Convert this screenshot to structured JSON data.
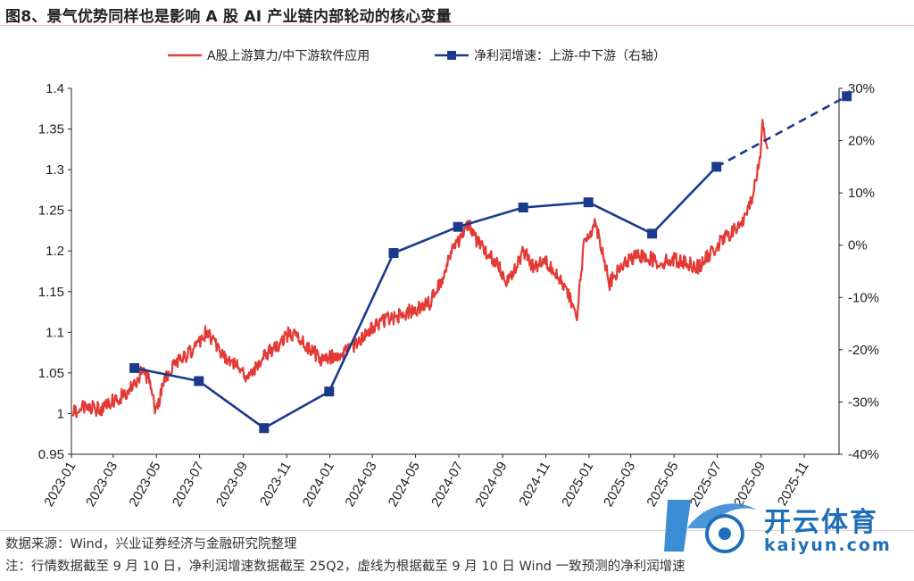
{
  "title": "图8、景气优势同样也是影响 A 股 AI 产业链内部轮动的核心变量",
  "source": "数据来源：Wind，兴业证券经济与金融研究院整理",
  "note": "注：行情数据截至 9 月 10 日，净利润增速数据截至 25Q2，虚线为根据截至 9 月 10 日 Wind 一致预测的净利润增速",
  "watermark": {
    "brand": "开云体育",
    "domain": "kaiyun.com"
  },
  "colors": {
    "red": "#e33a35",
    "blue": "#1a3a8c"
  },
  "chart_data": {
    "type": "line",
    "legend_position": "top",
    "x_ticks": [
      "2023-01",
      "2023-03",
      "2023-05",
      "2023-07",
      "2023-09",
      "2023-11",
      "2024-01",
      "2024-03",
      "2024-05",
      "2024-07",
      "2024-09",
      "2024-11",
      "2025-01",
      "2025-03",
      "2025-05",
      "2025-07",
      "2025-09",
      "2025-11"
    ],
    "xlim": [
      "2023-01",
      "2025-12-20"
    ],
    "y_left": {
      "ticks": [
        "0.95",
        "1",
        "1.05",
        "1.1",
        "1.15",
        "1.2",
        "1.25",
        "1.3",
        "1.35",
        "1.4"
      ],
      "lim": [
        0.95,
        1.4
      ]
    },
    "y_right": {
      "ticks": [
        "30%",
        "20%",
        "10%",
        "0%",
        "-10%",
        "-20%",
        "-30%",
        "-40%"
      ],
      "lim": [
        -40,
        30
      ],
      "unit": "%"
    },
    "series": [
      {
        "name": "A股上游算力/中下游软件应用",
        "axis": "left",
        "color": "#e33a35",
        "style": "line",
        "points": [
          [
            "2023-01-03",
            1.0
          ],
          [
            "2023-01-20",
            1.01
          ],
          [
            "2023-02-10",
            1.005
          ],
          [
            "2023-02-28",
            1.015
          ],
          [
            "2023-03-10",
            1.02
          ],
          [
            "2023-03-25",
            1.03
          ],
          [
            "2023-04-10",
            1.05
          ],
          [
            "2023-04-20",
            1.045
          ],
          [
            "2023-05-01",
            1.0
          ],
          [
            "2023-05-10",
            1.04
          ],
          [
            "2023-05-25",
            1.06
          ],
          [
            "2023-06-10",
            1.07
          ],
          [
            "2023-06-25",
            1.08
          ],
          [
            "2023-07-10",
            1.1
          ],
          [
            "2023-07-20",
            1.09
          ],
          [
            "2023-08-05",
            1.07
          ],
          [
            "2023-08-20",
            1.06
          ],
          [
            "2023-09-05",
            1.045
          ],
          [
            "2023-09-20",
            1.06
          ],
          [
            "2023-10-05",
            1.075
          ],
          [
            "2023-10-20",
            1.085
          ],
          [
            "2023-11-05",
            1.1
          ],
          [
            "2023-11-20",
            1.09
          ],
          [
            "2023-12-05",
            1.08
          ],
          [
            "2023-12-20",
            1.065
          ],
          [
            "2024-01-05",
            1.07
          ],
          [
            "2024-01-20",
            1.075
          ],
          [
            "2024-02-05",
            1.085
          ],
          [
            "2024-02-20",
            1.095
          ],
          [
            "2024-03-05",
            1.11
          ],
          [
            "2024-03-20",
            1.115
          ],
          [
            "2024-04-05",
            1.12
          ],
          [
            "2024-04-20",
            1.125
          ],
          [
            "2024-05-05",
            1.13
          ],
          [
            "2024-05-20",
            1.135
          ],
          [
            "2024-06-05",
            1.16
          ],
          [
            "2024-06-20",
            1.2
          ],
          [
            "2024-07-05",
            1.215
          ],
          [
            "2024-07-15",
            1.235
          ],
          [
            "2024-07-25",
            1.215
          ],
          [
            "2024-08-10",
            1.195
          ],
          [
            "2024-08-25",
            1.185
          ],
          [
            "2024-09-05",
            1.165
          ],
          [
            "2024-09-15",
            1.17
          ],
          [
            "2024-09-30",
            1.2
          ],
          [
            "2024-10-15",
            1.18
          ],
          [
            "2024-10-30",
            1.19
          ],
          [
            "2024-11-15",
            1.175
          ],
          [
            "2024-11-30",
            1.15
          ],
          [
            "2024-12-15",
            1.12
          ],
          [
            "2024-12-25",
            1.21
          ],
          [
            "2025-01-10",
            1.235
          ],
          [
            "2025-01-20",
            1.2
          ],
          [
            "2025-01-30",
            1.16
          ],
          [
            "2025-02-15",
            1.18
          ],
          [
            "2025-03-01",
            1.19
          ],
          [
            "2025-03-20",
            1.195
          ],
          [
            "2025-04-10",
            1.185
          ],
          [
            "2025-04-30",
            1.19
          ],
          [
            "2025-05-20",
            1.185
          ],
          [
            "2025-06-05",
            1.18
          ],
          [
            "2025-06-25",
            1.2
          ],
          [
            "2025-07-10",
            1.215
          ],
          [
            "2025-07-25",
            1.225
          ],
          [
            "2025-08-10",
            1.24
          ],
          [
            "2025-08-20",
            1.27
          ],
          [
            "2025-08-30",
            1.31
          ],
          [
            "2025-09-03",
            1.36
          ],
          [
            "2025-09-06",
            1.34
          ],
          [
            "2025-09-10",
            1.325
          ]
        ]
      },
      {
        "name": "净利润增速：上游-中下游（右轴）",
        "axis": "right",
        "color": "#1a3a8c",
        "style": "line-square",
        "points": [
          [
            "2023-03-31",
            -23.5
          ],
          [
            "2023-06-30",
            -26.0
          ],
          [
            "2023-09-30",
            -35.0
          ],
          [
            "2023-12-31",
            -28.0
          ],
          [
            "2024-03-31",
            -1.5
          ],
          [
            "2024-06-30",
            3.5
          ],
          [
            "2024-09-30",
            7.2
          ],
          [
            "2024-12-31",
            8.2
          ],
          [
            "2025-03-31",
            2.2
          ],
          [
            "2025-06-30",
            15.0
          ]
        ],
        "forecast_points": [
          [
            "2025-06-30",
            15.0
          ],
          [
            "2025-12-31",
            28.5
          ]
        ]
      }
    ]
  }
}
